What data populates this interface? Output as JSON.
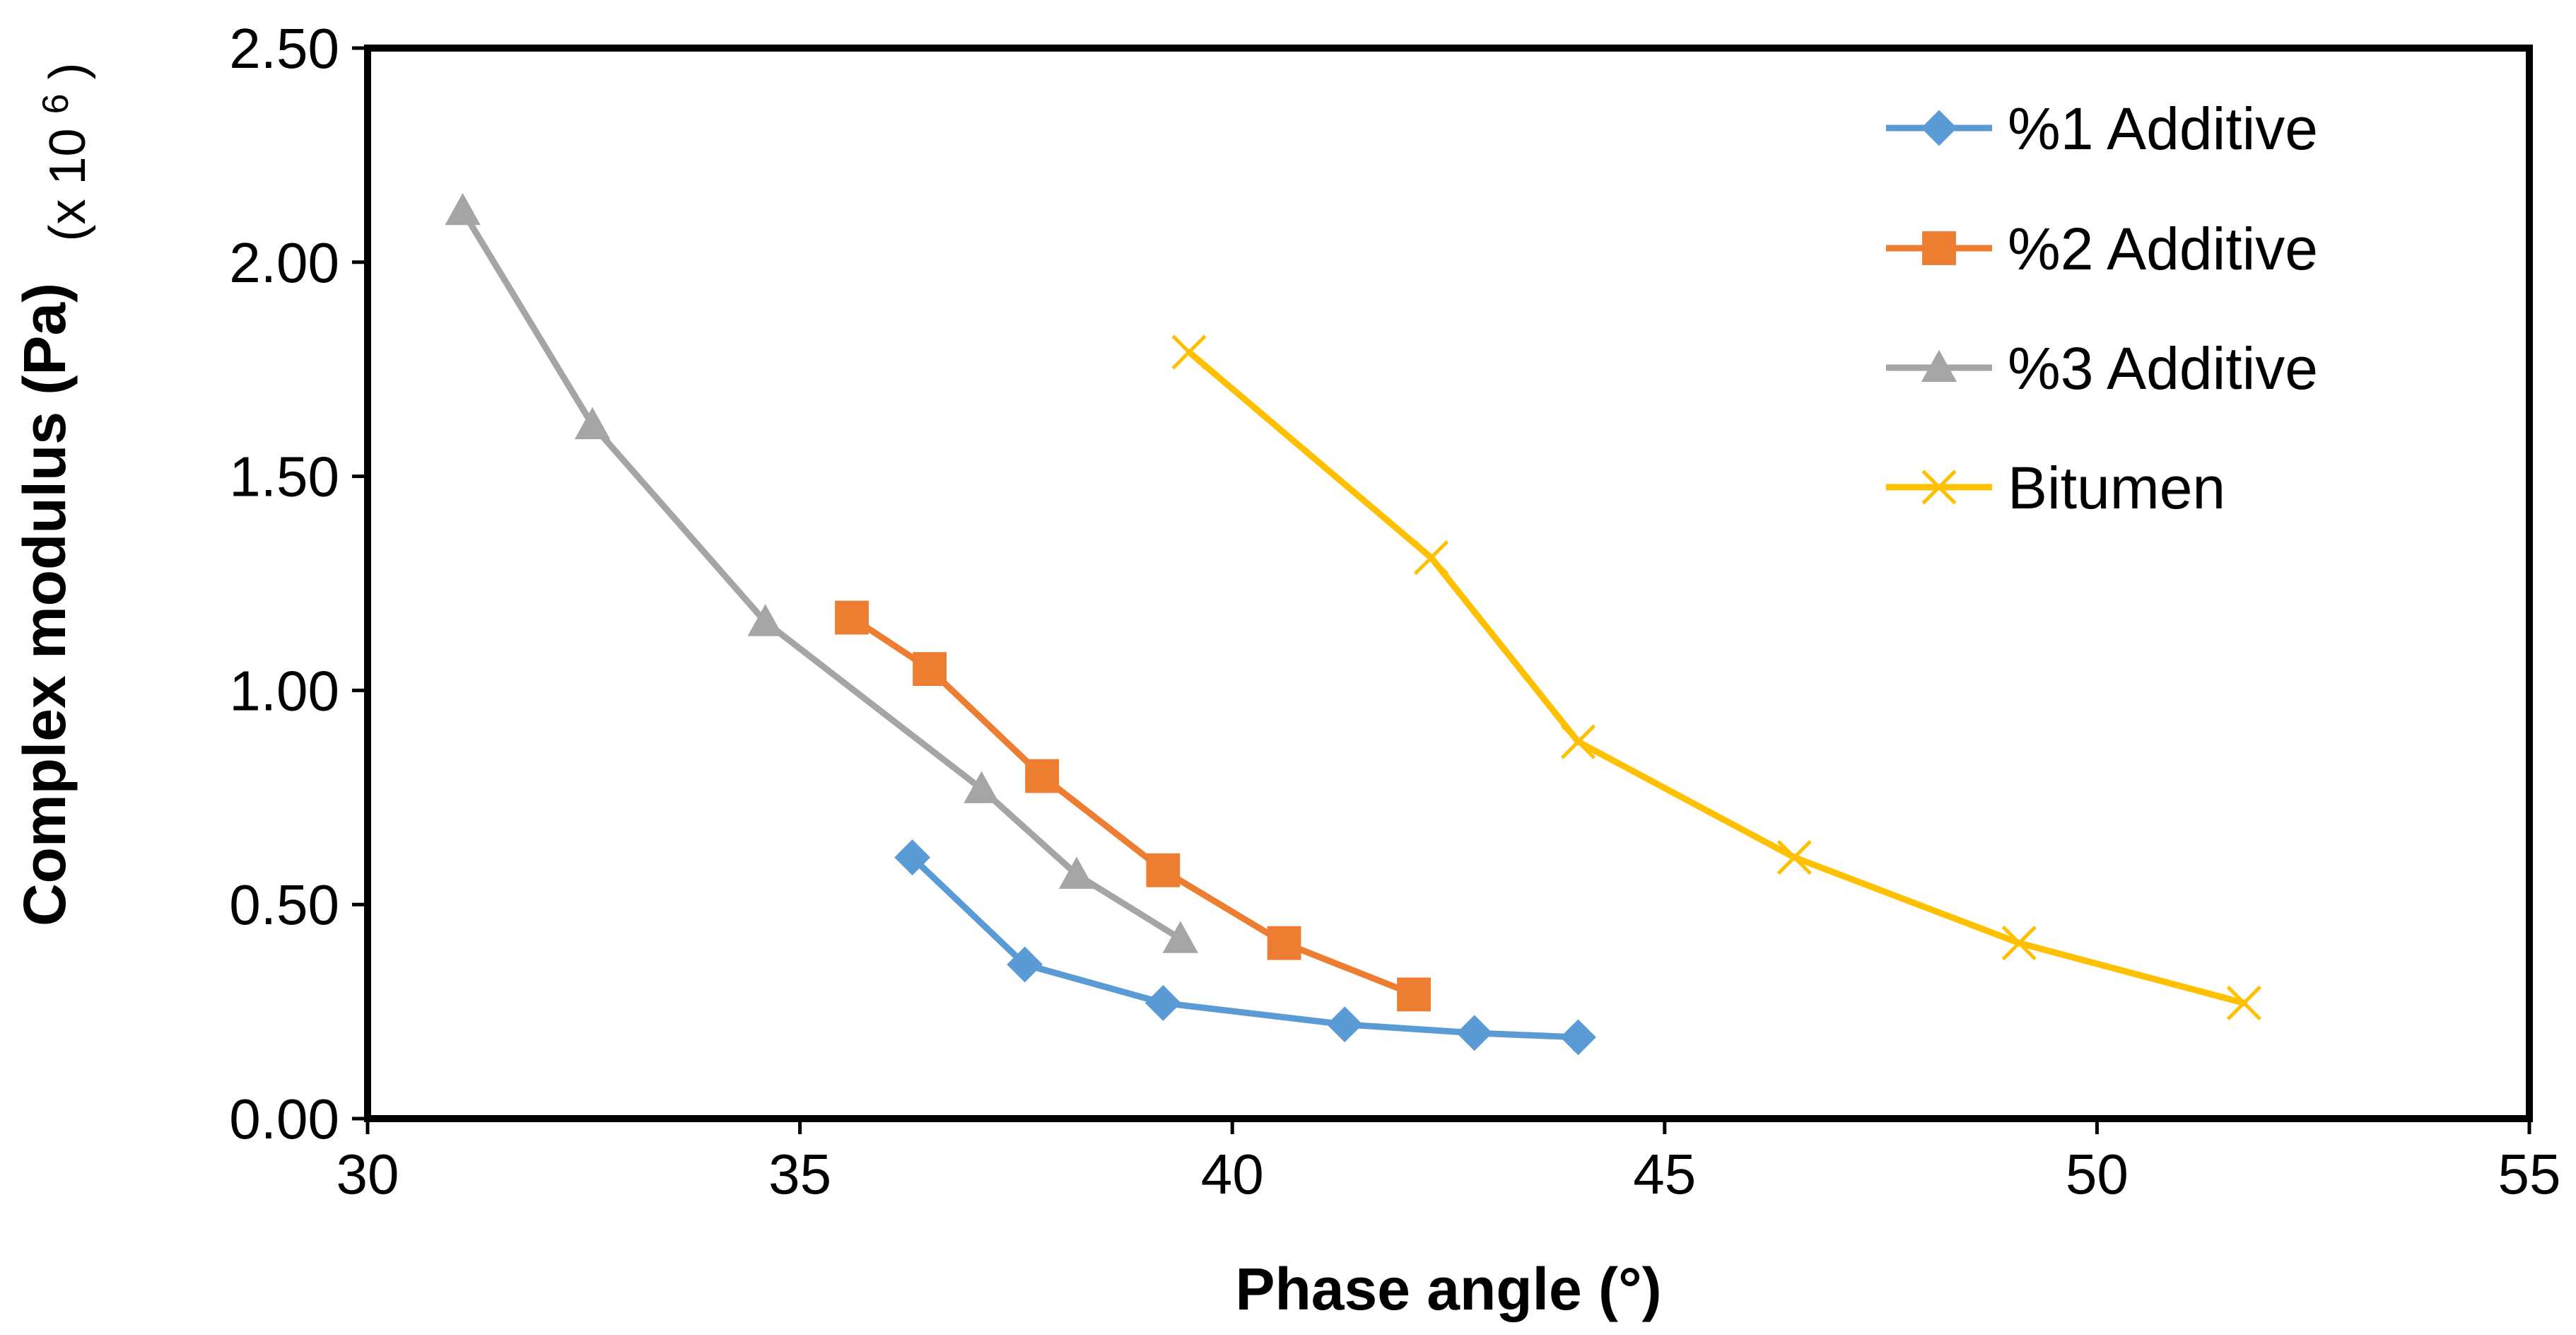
{
  "chart_data": {
    "type": "line",
    "title": "",
    "xlabel": "Phase angle (°)",
    "ylabel": "Complex modulus (Pa)",
    "y_multiplier_label": "(x 10",
    "y_multiplier_exponent": "6",
    "y_multiplier_close": ")",
    "xlim": [
      30,
      55
    ],
    "ylim": [
      0,
      2.5
    ],
    "x_ticks": [
      "30",
      "35",
      "40",
      "45",
      "50",
      "55"
    ],
    "y_ticks": [
      "0.00",
      "0.50",
      "1.00",
      "1.50",
      "2.00",
      "2.50"
    ],
    "grid": false,
    "legend_position": "top-right",
    "series": [
      {
        "name": "%1 Additive",
        "color": "#5B9BD5",
        "marker": "diamond",
        "x": [
          36.3,
          37.6,
          39.2,
          41.3,
          42.8,
          44.0
        ],
        "y": [
          0.61,
          0.36,
          0.27,
          0.22,
          0.2,
          0.19
        ]
      },
      {
        "name": "%2 Additive",
        "color": "#ED7D31",
        "marker": "square",
        "x": [
          35.6,
          36.5,
          37.8,
          39.2,
          40.6,
          42.1
        ],
        "y": [
          1.17,
          1.05,
          0.8,
          0.58,
          0.41,
          0.29
        ]
      },
      {
        "name": "%3 Additive",
        "color": "#A5A5A5",
        "marker": "triangle",
        "x": [
          31.1,
          32.6,
          34.6,
          37.1,
          38.2,
          39.4
        ],
        "y": [
          2.12,
          1.62,
          1.16,
          0.77,
          0.57,
          0.42
        ]
      },
      {
        "name": "Bitumen",
        "color": "#FFC000",
        "marker": "x",
        "x": [
          39.5,
          42.3,
          44.0,
          46.5,
          49.1,
          51.7
        ],
        "y": [
          1.79,
          1.31,
          0.88,
          0.61,
          0.41,
          0.27
        ]
      }
    ]
  }
}
